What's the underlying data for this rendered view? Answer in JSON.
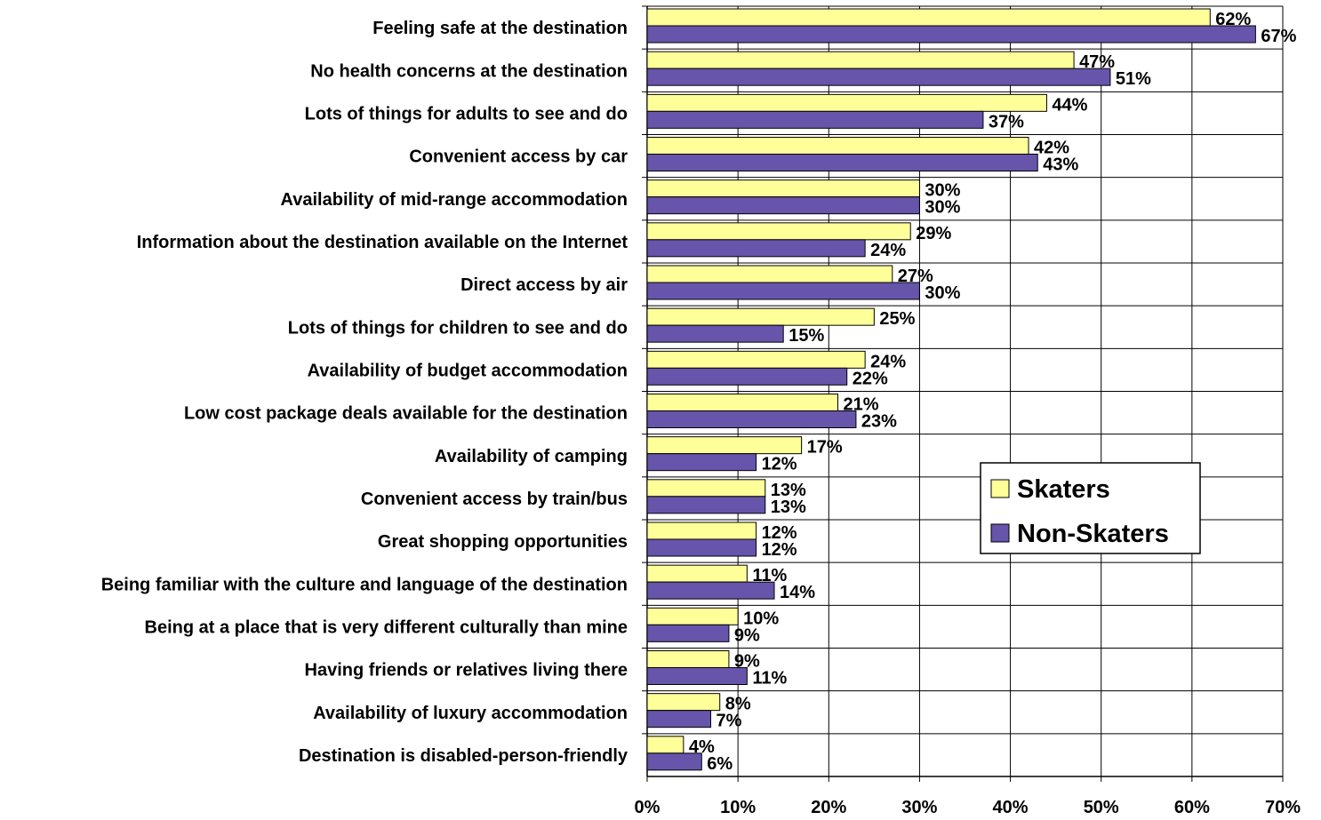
{
  "chart_data": {
    "type": "bar",
    "orientation": "horizontal",
    "title": "",
    "xlabel": "",
    "ylabel": "",
    "xlim": [
      0,
      70
    ],
    "x_ticks": [
      "0%",
      "10%",
      "20%",
      "30%",
      "40%",
      "50%",
      "60%",
      "70%"
    ],
    "grid": "vertical gridlines on",
    "legend_position": "right-center",
    "categories": [
      "Feeling safe at the destination",
      "No health concerns at the destination",
      "Lots of things for adults to see and do",
      "Convenient access by car",
      "Availability of mid-range accommodation",
      "Information about the destination available on the Internet",
      "Direct access by air",
      "Lots of things for children to see and do",
      "Availability of budget accommodation",
      "Low cost package deals available for the destination",
      "Availability of camping",
      "Convenient access by train/bus",
      "Great shopping opportunities",
      "Being familiar with the culture and language of the destination",
      "Being at a place that is very different culturally than mine",
      "Having friends or relatives living there",
      "Availability of luxury accommodation",
      "Destination is disabled-person-friendly"
    ],
    "series": [
      {
        "name": "Skaters",
        "color": "#FFFF99",
        "values": [
          62,
          47,
          44,
          42,
          30,
          29,
          27,
          25,
          24,
          21,
          17,
          13,
          12,
          11,
          10,
          9,
          8,
          4
        ],
        "labels": [
          "62%",
          "47%",
          "44%",
          "42%",
          "30%",
          "29%",
          "27%",
          "25%",
          "24%",
          "21%",
          "17%",
          "13%",
          "12%",
          "11%",
          "10%",
          "9%",
          "8%",
          "4%"
        ]
      },
      {
        "name": "Non-Skaters",
        "color": "#6655AA",
        "values": [
          67,
          51,
          37,
          43,
          30,
          24,
          30,
          15,
          22,
          23,
          12,
          13,
          12,
          14,
          9,
          11,
          7,
          6
        ],
        "labels": [
          "67%",
          "51%",
          "37%",
          "43%",
          "30%",
          "24%",
          "30%",
          "15%",
          "22%",
          "23%",
          "12%",
          "13%",
          "12%",
          "14%",
          "9%",
          "11%",
          "7%",
          "6%"
        ]
      }
    ]
  }
}
